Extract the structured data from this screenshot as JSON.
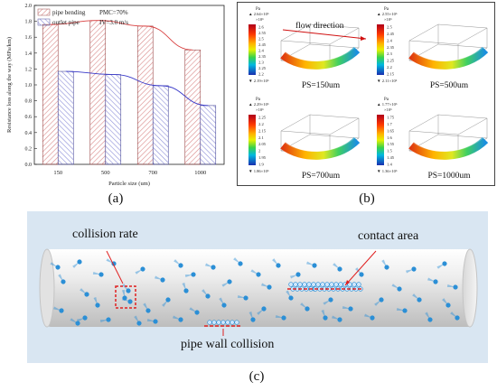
{
  "panel_a": {
    "caption": "(a)",
    "legend": [
      "pipe bending",
      "outlet pipe"
    ],
    "notes": [
      "PMC=70%",
      "IV=3.0 m/s"
    ],
    "chart_data": {
      "type": "bar",
      "categories": [
        "150",
        "500",
        "700",
        "1000"
      ],
      "series": [
        {
          "name": "pipe bending",
          "values": [
            1.76,
            1.81,
            1.74,
            1.44
          ]
        },
        {
          "name": "outlet pipe",
          "values": [
            1.17,
            1.13,
            0.99,
            0.74
          ]
        }
      ],
      "xlabel": "Particle size (um)",
      "ylabel": "Resistance loss along the way (MPa/km)",
      "ylim": [
        0.0,
        2.0
      ],
      "yticks": [
        "0.0",
        "0.2",
        "0.4",
        "0.6",
        "0.8",
        "1.0",
        "1.2",
        "1.4",
        "1.6",
        "1.8",
        "2.0"
      ],
      "colors": {
        "pipe bending": "#d98a8a",
        "outlet pipe": "#8d8fd8"
      },
      "legend_position": "top-left"
    }
  },
  "panel_b": {
    "caption": "(b)",
    "flow_label": "flow direction",
    "unit": "Pa",
    "subplots": [
      {
        "label": "PS=150um",
        "max": "2.64×10⁶",
        "min": "2.19×10⁶",
        "exp": "×10⁶",
        "ticks": [
          "2.6",
          "2.55",
          "2.5",
          "2.45",
          "2.4",
          "2.35",
          "2.3",
          "2.25",
          "2.2"
        ]
      },
      {
        "label": "PS=500um",
        "max": "2.55×10⁶",
        "min": "2.11×10⁶",
        "exp": "×10⁶",
        "ticks": [
          "2.5",
          "2.45",
          "2.4",
          "2.35",
          "2.3",
          "2.25",
          "2.2",
          "2.15"
        ]
      },
      {
        "label": "PS=700um",
        "max": "2.29×10⁶",
        "min": "1.86×10⁶",
        "exp": "×10⁶",
        "ticks": [
          "2.25",
          "2.2",
          "2.15",
          "2.1",
          "2.05",
          "2",
          "1.95",
          "1.9"
        ]
      },
      {
        "label": "PS=1000um",
        "max": "1.77×10⁶",
        "min": "1.36×10⁶",
        "exp": "×10⁶",
        "ticks": [
          "1.75",
          "1.7",
          "1.65",
          "1.6",
          "1.55",
          "1.5",
          "1.45",
          "1.4"
        ]
      }
    ]
  },
  "panel_c": {
    "caption": "(c)",
    "labels": {
      "collision_rate": "collision rate",
      "contact_area": "contact area",
      "pipe_wall_collision": "pipe wall collision"
    },
    "colors": {
      "particle": "#2b8fd6",
      "highlight": "#e02020",
      "background": "#d9e6f2"
    }
  }
}
